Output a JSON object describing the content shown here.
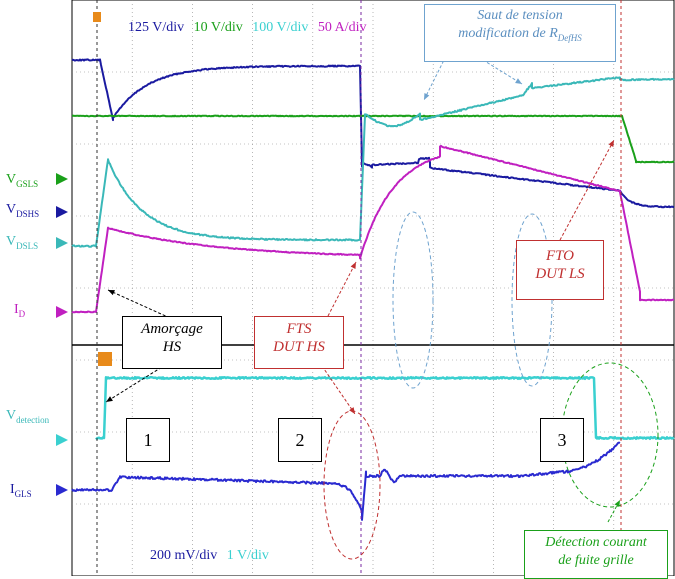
{
  "chart_data": {
    "type": "line",
    "upper_panel": {
      "scales": [
        {
          "text": "125 V/div",
          "color": "#1a1aa0"
        },
        {
          "text": "10 V/div",
          "color": "#1aa01a"
        },
        {
          "text": "100 V/div",
          "color": "#3ad0d0"
        },
        {
          "text": "50 A/div",
          "color": "#c020c0"
        }
      ],
      "channel_labels": [
        {
          "main": "V",
          "sub": "GSLS",
          "color": "#1aa01a"
        },
        {
          "main": "V",
          "sub": "DSHS",
          "color": "#1a1aa0"
        },
        {
          "main": "V",
          "sub": "DSLS",
          "color": "#3ab8b8"
        },
        {
          "main": "I",
          "sub": "D",
          "color": "#c020c0"
        }
      ],
      "series": [
        {
          "name": "VDSHS",
          "color": "#1a1aa0"
        },
        {
          "name": "VGSLS",
          "color": "#1aa01a"
        },
        {
          "name": "VDSLS",
          "color": "#3ab8b8"
        },
        {
          "name": "ID",
          "color": "#c020c0"
        }
      ]
    },
    "lower_panel": {
      "scales": [
        {
          "text": "200 mV/div",
          "color": "#1a1aa0"
        },
        {
          "text": "1 V/div",
          "color": "#3ad0d0"
        }
      ],
      "channel_labels": [
        {
          "main": "V",
          "sub": "detection",
          "color": "#3ab8b8"
        },
        {
          "main": "I",
          "sub": "GLS",
          "color": "#1a1aa0"
        }
      ],
      "series": [
        {
          "name": "Vdetection",
          "color": "#3ad0d0"
        },
        {
          "name": "IGLS",
          "color": "#2a2ad0"
        }
      ]
    },
    "grid": true
  },
  "annotations": {
    "saut": {
      "line1": "Saut de tension",
      "line2_pre": "modification de R",
      "line2_sub": "DefHS"
    },
    "amorcage": {
      "line1": "Amorçage",
      "line2": "HS"
    },
    "fts": {
      "line1": "FTS",
      "line2": "DUT HS"
    },
    "fto": {
      "line1": "FTO",
      "line2": "DUT LS"
    },
    "detection": {
      "line1": "Détection courant",
      "line2": "de fuite grille"
    },
    "phases": [
      "1",
      "2",
      "3"
    ]
  }
}
